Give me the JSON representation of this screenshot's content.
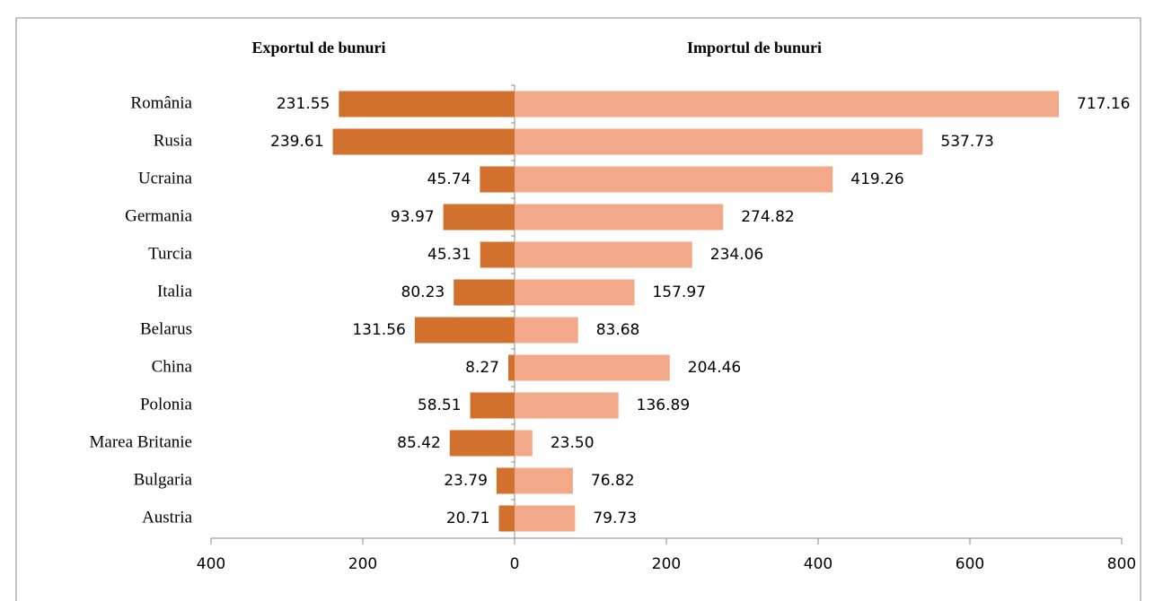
{
  "chart_data": {
    "type": "butterfly-bar",
    "categories": [
      "România",
      "Rusia",
      "Ucraina",
      "Germania",
      "Turcia",
      "Italia",
      "Belarus",
      "China",
      "Polonia",
      "Marea Britanie",
      "Bulgaria",
      "Austria"
    ],
    "series": [
      {
        "name": "Exportul de bunuri",
        "color": "#d2702d",
        "values": [
          231.55,
          239.61,
          45.74,
          93.97,
          45.31,
          80.23,
          131.56,
          8.27,
          58.51,
          85.42,
          23.79,
          20.71
        ],
        "value_labels": [
          "231.55",
          "239.61",
          "45.74",
          "93.97",
          "45.31",
          "80.23",
          "131.56",
          "8.27",
          "58.51",
          "85.42",
          "23.79",
          "20.71"
        ]
      },
      {
        "name": "Importul de bunuri",
        "color": "#f2a98a",
        "values": [
          717.16,
          537.73,
          419.26,
          274.82,
          234.06,
          157.97,
          83.68,
          204.46,
          136.89,
          23.5,
          76.82,
          79.73
        ],
        "value_labels": [
          "717.16",
          "537.73",
          "419.26",
          "274.82",
          "234.06",
          "157.97",
          "83.68",
          "204.46",
          "136.89",
          "23.50",
          "76.82",
          "79.73"
        ]
      }
    ],
    "xlim": [
      -400,
      800
    ],
    "xticks": [
      {
        "value": -400,
        "label": "400"
      },
      {
        "value": -200,
        "label": "200"
      },
      0,
      200,
      400,
      600,
      800
    ]
  }
}
